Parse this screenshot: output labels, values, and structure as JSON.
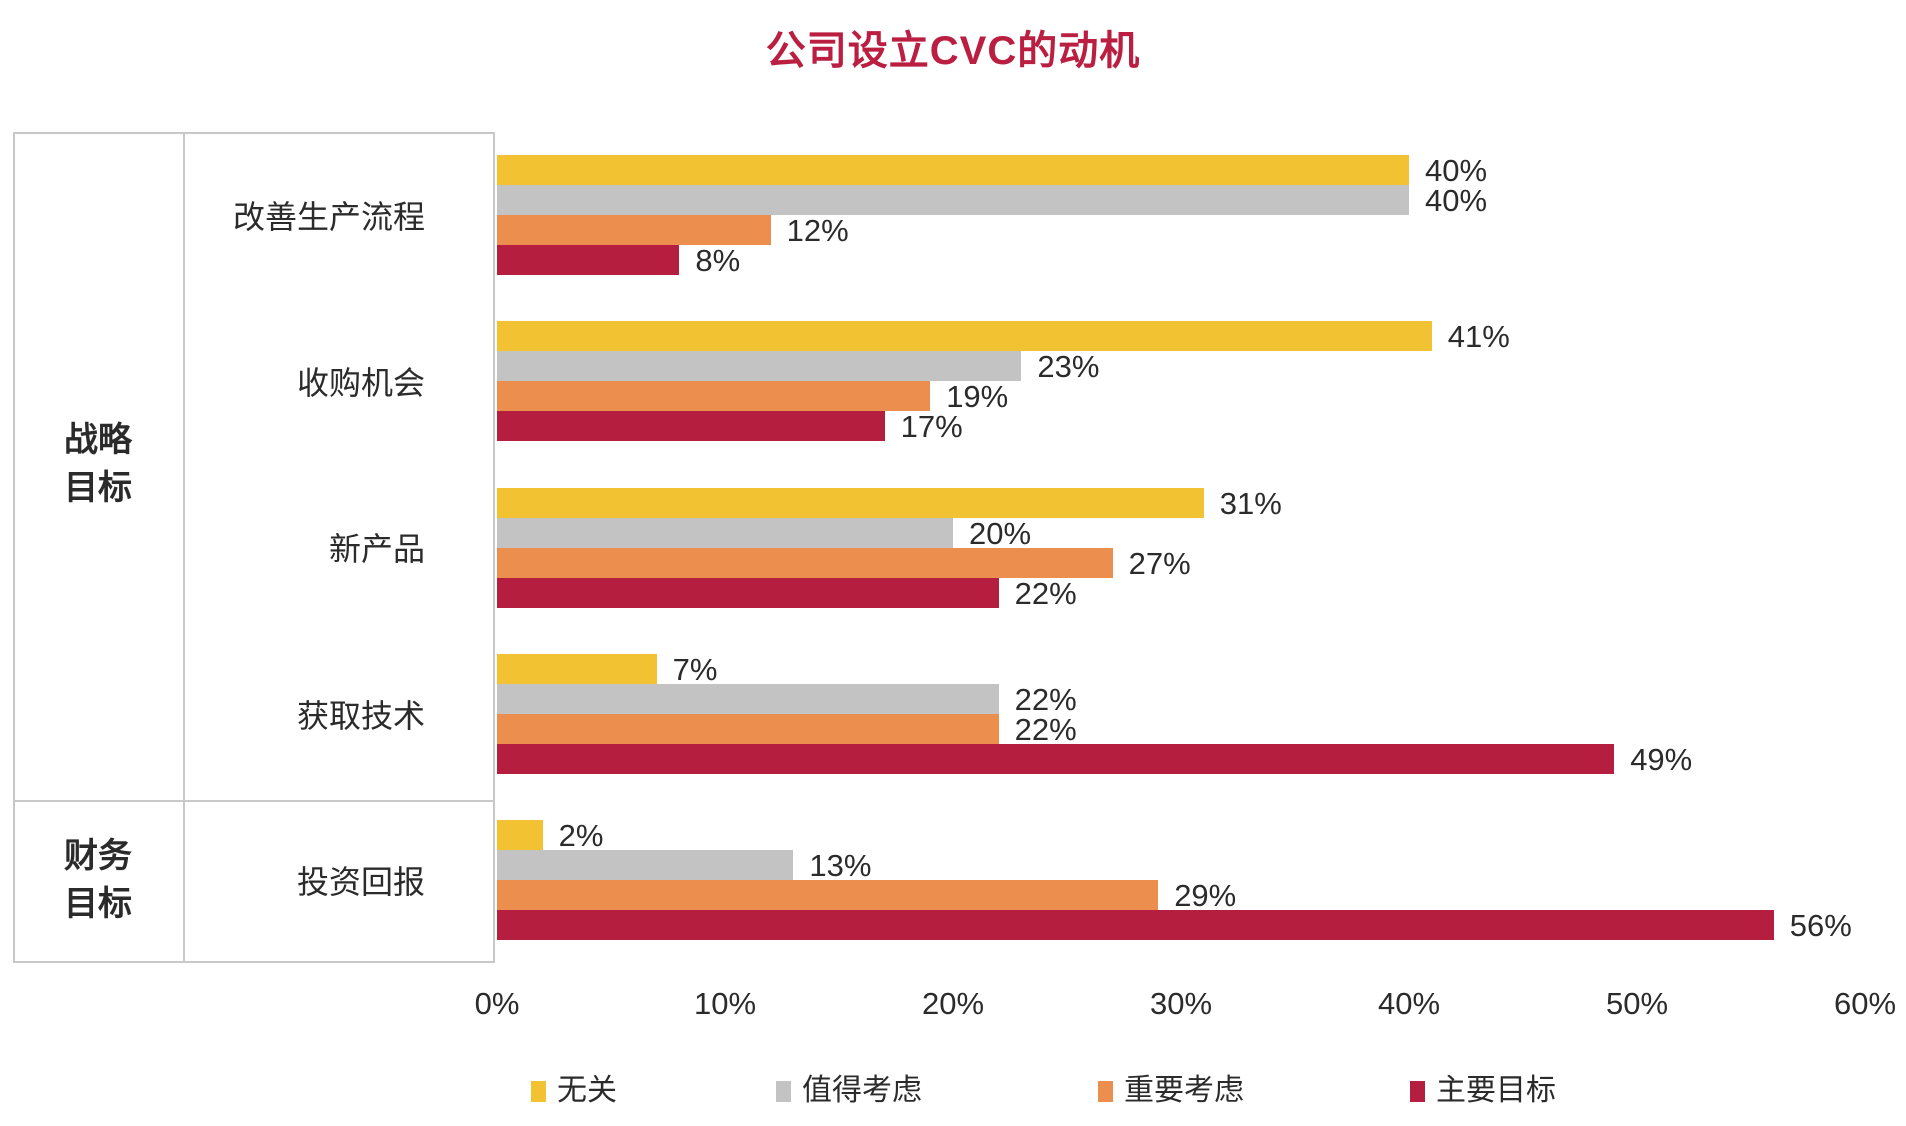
{
  "title": "公司设立CVC的动机",
  "colors": {
    "title": "#BA1E41",
    "border": "#C8C8C8",
    "text": "#2B2B2B"
  },
  "chart_data": {
    "type": "bar",
    "orientation": "horizontal",
    "title": "公司设立CVC的动机",
    "value_suffix": "%",
    "xlim": [
      0,
      60
    ],
    "x_axis_ticks": [
      "0%",
      "10%",
      "20%",
      "30%",
      "40%",
      "50%",
      "60%"
    ],
    "legend_position": "bottom",
    "series": [
      {
        "name": "无关",
        "color": "#F2C232"
      },
      {
        "name": "值得考虑",
        "color": "#C3C3C3"
      },
      {
        "name": "重要考虑",
        "color": "#EC8E4D"
      },
      {
        "name": "主要目标",
        "color": "#B61E3F"
      }
    ],
    "sections": [
      {
        "label": "战略目标",
        "row_count": 4
      },
      {
        "label": "财务目标",
        "row_count": 1
      }
    ],
    "rows": [
      {
        "section": "战略目标",
        "category": "改善生产流程",
        "values": [
          40,
          40,
          12,
          8
        ]
      },
      {
        "section": "战略目标",
        "category": "收购机会",
        "values": [
          41,
          23,
          19,
          17
        ]
      },
      {
        "section": "战略目标",
        "category": "新产品",
        "values": [
          31,
          20,
          27,
          22
        ]
      },
      {
        "section": "战略目标",
        "category": "获取技术",
        "values": [
          7,
          22,
          22,
          49
        ]
      },
      {
        "section": "财务目标",
        "category": "投资回报",
        "values": [
          2,
          13,
          29,
          56
        ]
      }
    ],
    "value_labels": [
      [
        "40%",
        "40%",
        "12%",
        "8%"
      ],
      [
        "41%",
        "23%",
        "19%",
        "17%"
      ],
      [
        "31%",
        "20%",
        "27%",
        "22%"
      ],
      [
        "7%",
        "22%",
        "22%",
        "49%"
      ],
      [
        "2%",
        "13%",
        "29%",
        "56%"
      ]
    ]
  }
}
